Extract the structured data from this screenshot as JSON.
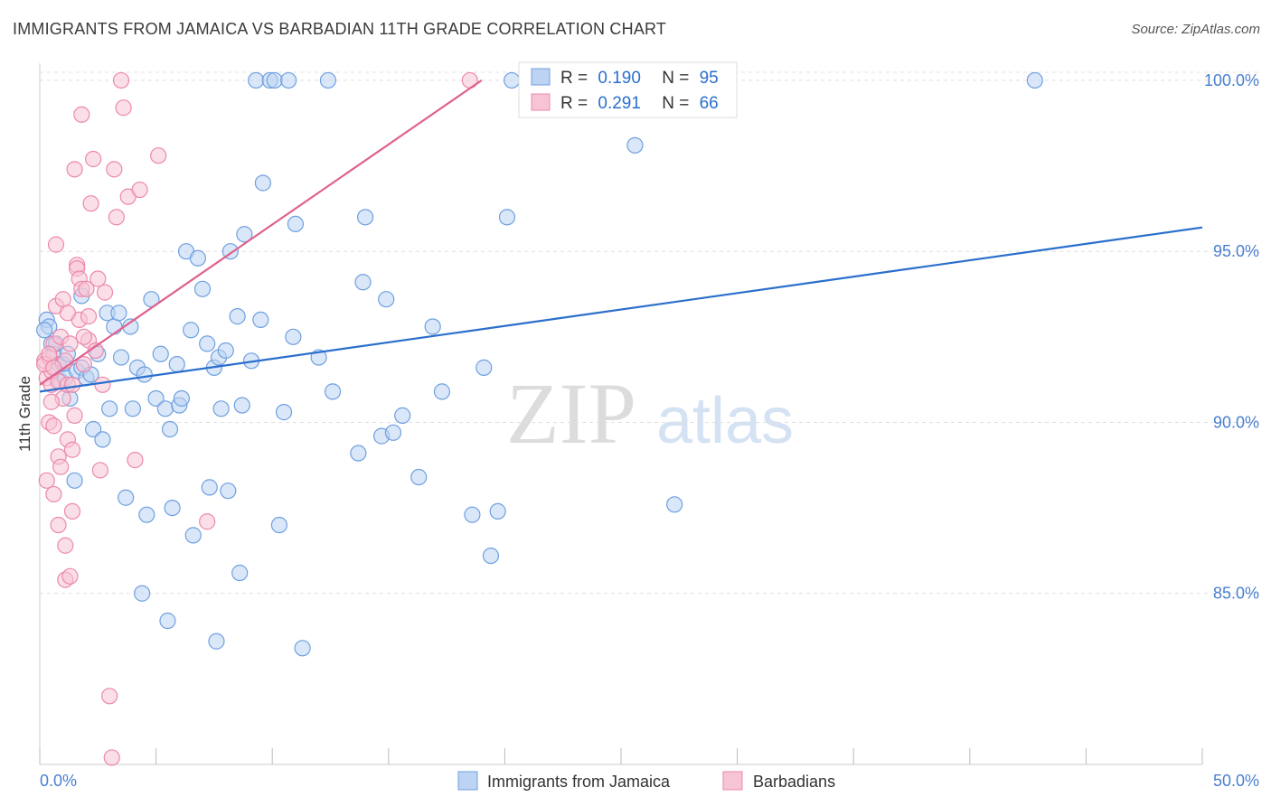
{
  "title": "IMMIGRANTS FROM JAMAICA VS BARBADIAN 11TH GRADE CORRELATION CHART",
  "source": "Source: ZipAtlas.com",
  "watermark": {
    "zip": "ZIP",
    "atlas": "atlas"
  },
  "colors": {
    "blue": "#6fa0e0",
    "blue_fill": "#bcd3f3",
    "blue_line": "#2a6fcc",
    "pink": "#ec89aa",
    "pink_fill": "#f7c4d6",
    "pink_line": "#e0628e",
    "axis_text": "#4a7fce",
    "grid": "#e0e0e0"
  },
  "chart_data": {
    "type": "scatter",
    "title": "IMMIGRANTS FROM JAMAICA VS BARBADIAN 11TH GRADE CORRELATION CHART",
    "xlabel": "",
    "ylabel": "11th Grade",
    "xlim": [
      0,
      50
    ],
    "ylim": [
      80,
      100.5
    ],
    "x_tick_labels": [
      "0.0%",
      "50.0%"
    ],
    "y_ticks": [
      85,
      90,
      95,
      100
    ],
    "y_tick_labels": [
      "85.0%",
      "90.0%",
      "95.0%",
      "100.0%"
    ],
    "legend_position": "top-center",
    "legend": [
      {
        "name": "Immigrants from Jamaica",
        "r_label": "R =",
        "r": "0.190",
        "n_label": "N =",
        "n": "95"
      },
      {
        "name": "Barbadians",
        "r_label": "R =",
        "r": "0.291",
        "n_label": "N =",
        "n": "66"
      }
    ],
    "series": [
      {
        "name": "Immigrants from Jamaica",
        "trend": {
          "x": [
            0,
            50
          ],
          "y": [
            90.9,
            95.7
          ]
        },
        "points": [
          [
            0.3,
            93.0
          ],
          [
            0.4,
            92.8
          ],
          [
            0.5,
            92.3
          ],
          [
            0.6,
            92.0
          ],
          [
            0.7,
            92.3
          ],
          [
            0.8,
            91.7
          ],
          [
            0.9,
            91.2
          ],
          [
            1.0,
            91.7
          ],
          [
            1.1,
            91.3
          ],
          [
            1.2,
            92.0
          ],
          [
            1.3,
            90.7
          ],
          [
            1.5,
            88.3
          ],
          [
            1.6,
            91.5
          ],
          [
            1.8,
            91.6
          ],
          [
            1.8,
            93.7
          ],
          [
            2.0,
            91.3
          ],
          [
            2.2,
            91.4
          ],
          [
            2.3,
            89.8
          ],
          [
            2.5,
            92.0
          ],
          [
            2.7,
            89.5
          ],
          [
            2.9,
            93.2
          ],
          [
            3.0,
            90.4
          ],
          [
            3.2,
            92.8
          ],
          [
            3.4,
            93.2
          ],
          [
            3.5,
            91.9
          ],
          [
            3.7,
            87.8
          ],
          [
            3.9,
            92.8
          ],
          [
            4.0,
            90.4
          ],
          [
            4.2,
            91.6
          ],
          [
            4.4,
            85.0
          ],
          [
            4.5,
            91.4
          ],
          [
            4.6,
            87.3
          ],
          [
            4.8,
            93.6
          ],
          [
            5.0,
            90.7
          ],
          [
            5.2,
            92.0
          ],
          [
            5.4,
            90.4
          ],
          [
            5.5,
            84.2
          ],
          [
            5.6,
            89.8
          ],
          [
            5.7,
            87.5
          ],
          [
            5.9,
            91.7
          ],
          [
            6.0,
            90.5
          ],
          [
            6.1,
            90.7
          ],
          [
            6.3,
            95.0
          ],
          [
            6.5,
            92.7
          ],
          [
            6.6,
            86.7
          ],
          [
            6.8,
            94.8
          ],
          [
            7.0,
            93.9
          ],
          [
            7.2,
            92.3
          ],
          [
            7.3,
            88.1
          ],
          [
            7.5,
            91.6
          ],
          [
            7.6,
            83.6
          ],
          [
            7.7,
            91.9
          ],
          [
            7.8,
            90.4
          ],
          [
            8.0,
            92.1
          ],
          [
            8.1,
            88.0
          ],
          [
            8.2,
            95.0
          ],
          [
            8.5,
            93.1
          ],
          [
            8.6,
            85.6
          ],
          [
            8.7,
            90.5
          ],
          [
            8.8,
            95.5
          ],
          [
            9.1,
            91.8
          ],
          [
            9.3,
            100.0
          ],
          [
            9.5,
            93.0
          ],
          [
            9.6,
            97.0
          ],
          [
            9.9,
            100.0
          ],
          [
            10.1,
            100.0
          ],
          [
            10.3,
            87.0
          ],
          [
            10.5,
            90.3
          ],
          [
            10.7,
            100.0
          ],
          [
            10.9,
            92.5
          ],
          [
            11.0,
            95.8
          ],
          [
            11.3,
            83.4
          ],
          [
            12.0,
            91.9
          ],
          [
            12.4,
            100.0
          ],
          [
            12.6,
            90.9
          ],
          [
            13.7,
            89.1
          ],
          [
            13.9,
            94.1
          ],
          [
            14.0,
            96.0
          ],
          [
            14.7,
            89.6
          ],
          [
            14.9,
            93.6
          ],
          [
            15.2,
            89.7
          ],
          [
            15.6,
            90.2
          ],
          [
            16.3,
            88.4
          ],
          [
            16.9,
            92.8
          ],
          [
            17.3,
            90.9
          ],
          [
            18.6,
            87.3
          ],
          [
            19.1,
            91.6
          ],
          [
            19.4,
            86.1
          ],
          [
            19.7,
            87.4
          ],
          [
            20.1,
            96.0
          ],
          [
            20.3,
            100.0
          ],
          [
            25.6,
            98.1
          ],
          [
            27.3,
            87.6
          ],
          [
            42.8,
            100.0
          ],
          [
            0.2,
            92.7
          ]
        ]
      },
      {
        "name": "Barbadians",
        "trend": {
          "x": [
            0,
            19.0
          ],
          "y": [
            91.1,
            100.0
          ]
        },
        "points": [
          [
            0.2,
            91.8
          ],
          [
            0.3,
            91.3
          ],
          [
            0.3,
            88.3
          ],
          [
            0.4,
            90.0
          ],
          [
            0.4,
            91.9
          ],
          [
            0.5,
            91.1
          ],
          [
            0.5,
            91.5
          ],
          [
            0.6,
            92.3
          ],
          [
            0.6,
            89.9
          ],
          [
            0.6,
            87.9
          ],
          [
            0.7,
            95.2
          ],
          [
            0.7,
            93.4
          ],
          [
            0.8,
            87.0
          ],
          [
            0.8,
            89.0
          ],
          [
            0.8,
            91.2
          ],
          [
            0.9,
            92.5
          ],
          [
            1.0,
            93.6
          ],
          [
            1.0,
            90.7
          ],
          [
            1.1,
            91.8
          ],
          [
            1.1,
            86.4
          ],
          [
            1.1,
            85.4
          ],
          [
            1.2,
            91.1
          ],
          [
            1.2,
            89.5
          ],
          [
            1.3,
            92.3
          ],
          [
            1.3,
            85.5
          ],
          [
            1.4,
            87.4
          ],
          [
            1.4,
            89.2
          ],
          [
            1.4,
            91.1
          ],
          [
            1.5,
            97.4
          ],
          [
            1.6,
            94.6
          ],
          [
            1.6,
            94.5
          ],
          [
            1.7,
            93.0
          ],
          [
            1.7,
            94.2
          ],
          [
            1.8,
            93.9
          ],
          [
            1.8,
            99.0
          ],
          [
            1.9,
            91.7
          ],
          [
            2.0,
            93.9
          ],
          [
            2.1,
            92.4
          ],
          [
            2.2,
            96.4
          ],
          [
            2.3,
            97.7
          ],
          [
            2.4,
            92.1
          ],
          [
            2.5,
            94.2
          ],
          [
            2.6,
            88.6
          ],
          [
            2.7,
            91.1
          ],
          [
            2.8,
            93.8
          ],
          [
            3.0,
            82.0
          ],
          [
            3.2,
            97.4
          ],
          [
            3.3,
            96.0
          ],
          [
            3.5,
            100.0
          ],
          [
            3.6,
            99.2
          ],
          [
            3.8,
            96.6
          ],
          [
            4.1,
            88.9
          ],
          [
            4.3,
            96.8
          ],
          [
            5.1,
            97.8
          ],
          [
            7.2,
            87.1
          ],
          [
            18.5,
            100.0
          ],
          [
            0.2,
            91.7
          ],
          [
            0.4,
            92.0
          ],
          [
            0.5,
            90.6
          ],
          [
            0.9,
            88.7
          ],
          [
            1.2,
            93.2
          ],
          [
            1.5,
            90.2
          ],
          [
            1.9,
            92.5
          ],
          [
            2.1,
            93.1
          ],
          [
            3.1,
            80.2
          ],
          [
            0.6,
            91.6
          ]
        ]
      }
    ]
  }
}
